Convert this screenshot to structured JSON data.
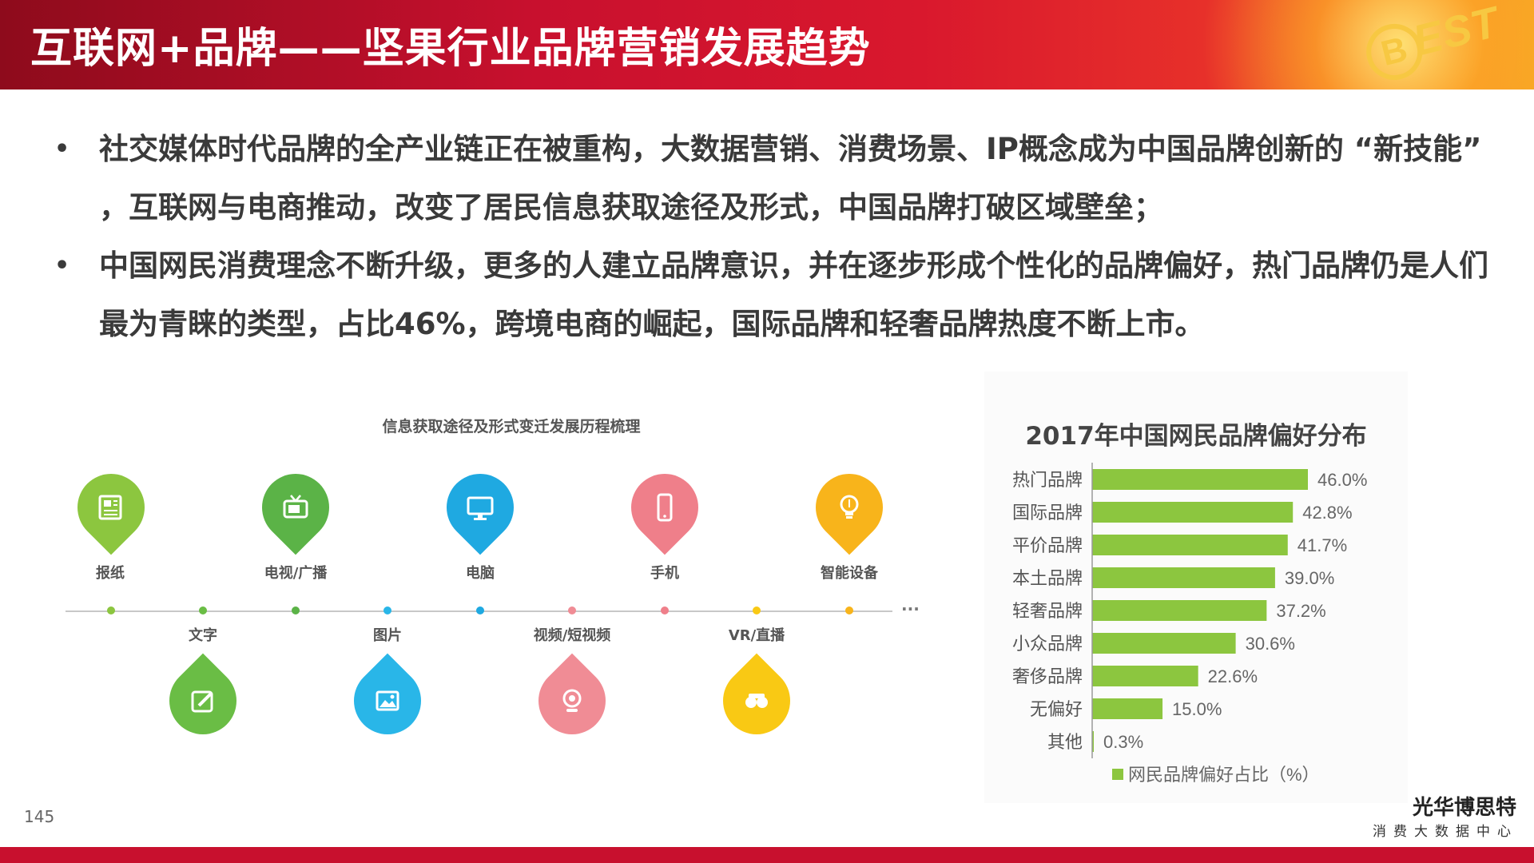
{
  "header": {
    "title": "互联网+品牌——坚果行业品牌营销发展趋势",
    "logo_b": "B",
    "logo_word": "EST"
  },
  "bullets": [
    {
      "marker": "•",
      "text": "社交媒体时代品牌的全产业链正在被重构，大数据营销、消费场景、IP概念成为中国品牌创新的 “新技能” ，互联网与电商推动，改变了居民信息获取途径及形式，中国品牌打破区域壁垒；"
    },
    {
      "marker": "•",
      "text": "中国网民消费理念不断升级，更多的人建立品牌意识，并在逐步形成个性化的品牌偏好，热门品牌仍是人们最为青睐的类型，占比46%，跨境电商的崛起，国际品牌和轻奢品牌热度不断上市。"
    }
  ],
  "timeline": {
    "title": "信息获取途径及形式变迁发展历程梳理",
    "more": "...",
    "upper": [
      {
        "label": "报纸",
        "icon": "newspaper-icon",
        "color": "#8cc63f"
      },
      {
        "label": "电视/广播",
        "icon": "tv-icon",
        "color": "#5bb347"
      },
      {
        "label": "电脑",
        "icon": "monitor-icon",
        "color": "#1fa9e1"
      },
      {
        "label": "手机",
        "icon": "phone-icon",
        "color": "#ef7f8a"
      },
      {
        "label": "智能设备",
        "icon": "lightbulb-icon",
        "color": "#f8b41b"
      }
    ],
    "lower": [
      {
        "label": "文字",
        "icon": "pencil-icon",
        "color": "#6abd45"
      },
      {
        "label": "图片",
        "icon": "picture-icon",
        "color": "#29b6e8"
      },
      {
        "label": "视频/短视频",
        "icon": "webcam-icon",
        "color": "#f08c95"
      },
      {
        "label": "VR/直播",
        "icon": "vr-glasses-icon",
        "color": "#f9c914"
      }
    ]
  },
  "chart_data": {
    "type": "bar",
    "orientation": "horizontal",
    "title": "2017年中国网民品牌偏好分布",
    "categories": [
      "热门品牌",
      "国际品牌",
      "平价品牌",
      "本土品牌",
      "轻奢品牌",
      "小众品牌",
      "奢侈品牌",
      "无偏好",
      "其他"
    ],
    "series": [
      {
        "name": "网民品牌偏好占比（%）",
        "values": [
          46.0,
          42.8,
          41.7,
          39.0,
          37.2,
          30.6,
          22.6,
          15.0,
          0.3
        ],
        "color": "#8cc63f"
      }
    ],
    "value_labels": [
      "46.0%",
      "42.8%",
      "41.7%",
      "39.0%",
      "37.2%",
      "30.6%",
      "22.6%",
      "15.0%",
      "0.3%"
    ],
    "legend_position": "bottom",
    "grid": false
  },
  "footer": {
    "page_number": "145",
    "company": "光华博思特",
    "subtitle": "消费大数据中心"
  }
}
